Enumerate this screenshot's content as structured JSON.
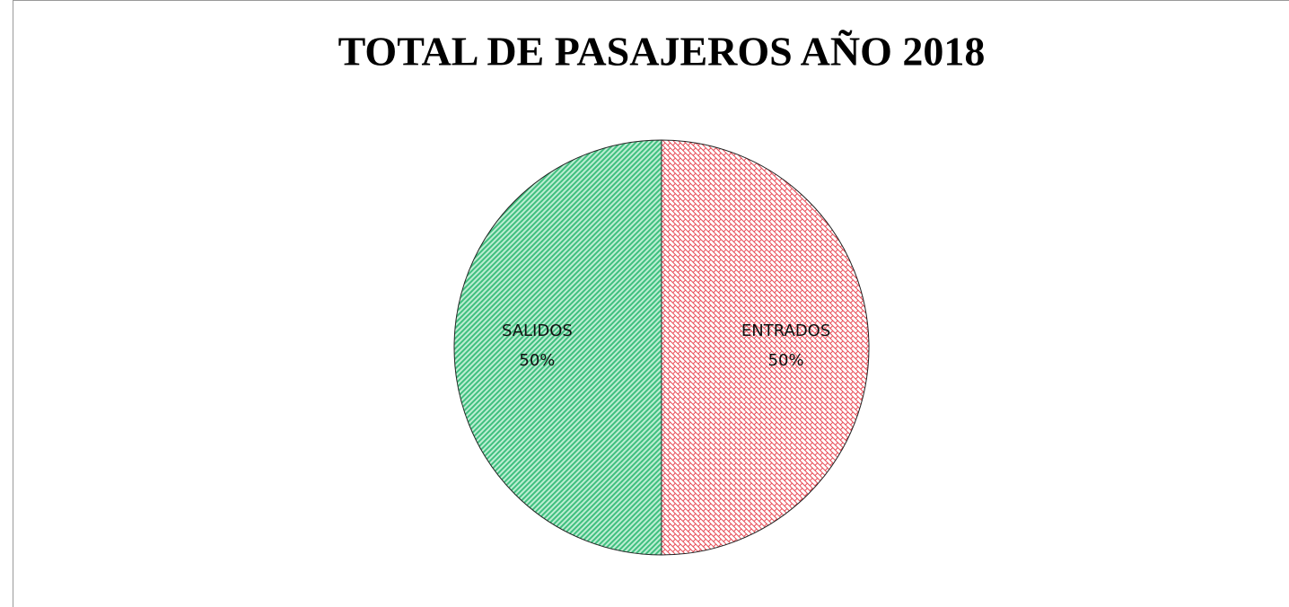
{
  "chart_data": {
    "type": "pie",
    "title": "TOTAL DE PASAJEROS AÑO 2018",
    "categories": [
      "ENTRADOS",
      "SALIDOS"
    ],
    "values": [
      50,
      50
    ],
    "value_labels": [
      "50%",
      "50%"
    ],
    "colors": [
      "#e84a55",
      "#3fbf7f"
    ]
  }
}
